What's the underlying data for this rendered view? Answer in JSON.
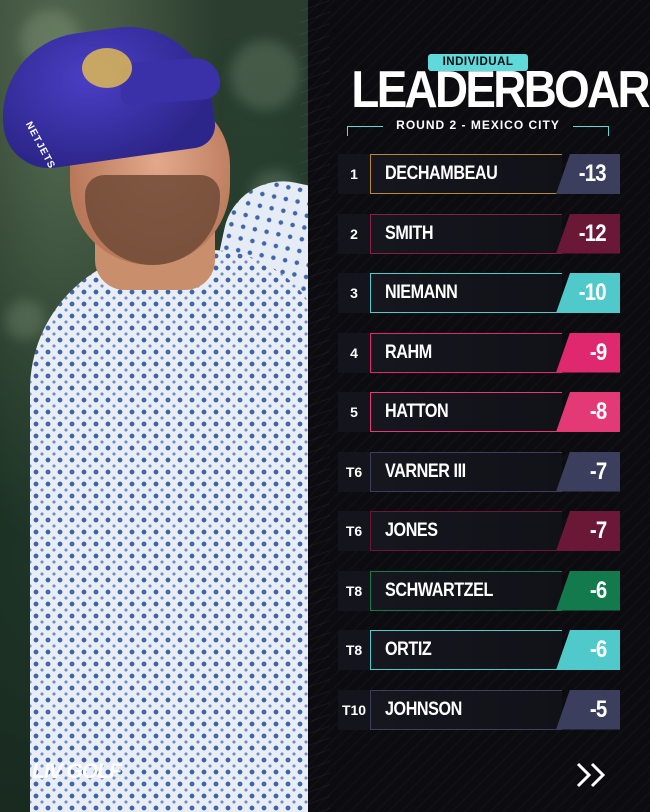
{
  "header": {
    "badge": "INDIVIDUAL",
    "title": "LEADERBOARD",
    "subtitle": "ROUND 2 - MEXICO CITY"
  },
  "photo": {
    "cap_text": "NETJETS"
  },
  "brand": {
    "logo": "LIV GOLF"
  },
  "leaderboard": [
    {
      "rank": "1",
      "name": "DECHAMBEAU",
      "score": "-13",
      "accent": "#b58a3a",
      "score_color": "#3b3e5c"
    },
    {
      "rank": "2",
      "name": "SMITH",
      "score": "-12",
      "accent": "#8a1f45",
      "score_color": "#6b1736"
    },
    {
      "rank": "3",
      "name": "NIEMANN",
      "score": "-10",
      "accent": "#4fc9c9",
      "score_color": "#4fc9c9"
    },
    {
      "rank": "4",
      "name": "RAHM",
      "score": "-9",
      "accent": "#e0286e",
      "score_color": "#e0286e"
    },
    {
      "rank": "5",
      "name": "HATTON",
      "score": "-8",
      "accent": "#e33a75",
      "score_color": "#e33a75"
    },
    {
      "rank": "T6",
      "name": "VARNER III",
      "score": "-7",
      "accent": "#3b3e5c",
      "score_color": "#3b3e5c"
    },
    {
      "rank": "T6",
      "name": "JONES",
      "score": "-7",
      "accent": "#6b1736",
      "score_color": "#6b1736"
    },
    {
      "rank": "T8",
      "name": "SCHWARTZEL",
      "score": "-6",
      "accent": "#137a4e",
      "score_color": "#137a4e"
    },
    {
      "rank": "T8",
      "name": "ORTIZ",
      "score": "-6",
      "accent": "#4fc9c9",
      "score_color": "#4fc9c9"
    },
    {
      "rank": "T10",
      "name": "JOHNSON",
      "score": "-5",
      "accent": "#3b3e5c",
      "score_color": "#3b3e5c"
    }
  ],
  "icons": {
    "next": "double-chevron-right-icon"
  }
}
